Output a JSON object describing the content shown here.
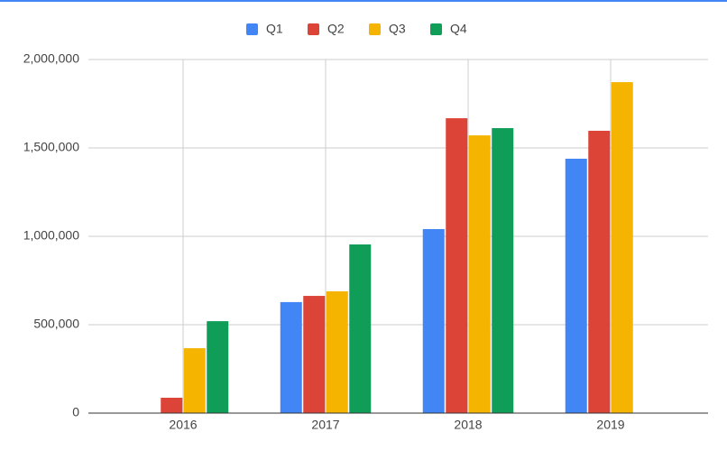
{
  "chart_data": {
    "type": "bar",
    "categories": [
      "2016",
      "2017",
      "2018",
      "2019"
    ],
    "series": [
      {
        "name": "Q1",
        "color": "#4285f4",
        "values": [
          null,
          628000,
          1041000,
          1439000
        ]
      },
      {
        "name": "Q2",
        "color": "#db4437",
        "values": [
          87000,
          663000,
          1668000,
          1597000
        ]
      },
      {
        "name": "Q3",
        "color": "#f4b400",
        "values": [
          367000,
          689000,
          1571000,
          1872000
        ]
      },
      {
        "name": "Q4",
        "color": "#0f9d58",
        "values": [
          520000,
          954000,
          1612000,
          null
        ]
      }
    ],
    "ylim": [
      0,
      2000000
    ],
    "yticks": [
      0,
      {
        "value": 500000,
        "label": "500,000"
      },
      {
        "value": 1000000,
        "label": "1,000,000"
      },
      {
        "value": 1500000,
        "label": "1,500,000"
      },
      {
        "value": 2000000,
        "label": "2,000,000"
      }
    ],
    "grid": true,
    "legend": "top"
  }
}
